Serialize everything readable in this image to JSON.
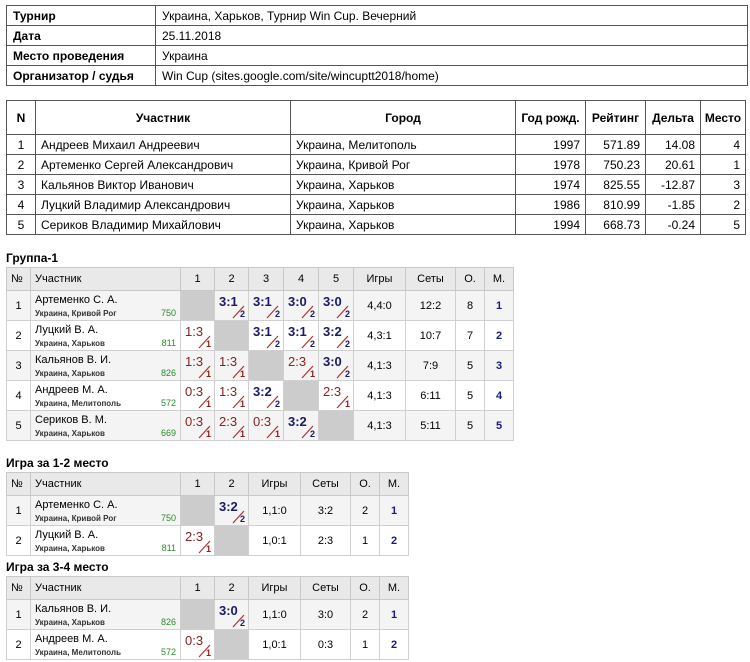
{
  "info": {
    "rows": [
      [
        "Турнир",
        "Украина, Харьков, Турнир Win Cup. Вечерний"
      ],
      [
        "Дата",
        "25.11.2018"
      ],
      [
        "Место проведения",
        "Украина"
      ],
      [
        "Организатор / судья",
        "Win Cup (sites.google.com/site/wincuptt2018/home)"
      ]
    ]
  },
  "participants": {
    "header": [
      "N",
      "Участник",
      "Город",
      "Год рожд.",
      "Рейтинг",
      "Дельта",
      "Место"
    ],
    "rows": [
      [
        "1",
        "Андреев Михаил Андреевич",
        "Украина, Мелитополь",
        "1997",
        "571.89",
        "14.08",
        "4"
      ],
      [
        "2",
        "Артеменко Сергей Александрович",
        "Украина, Кривой Рог",
        "1978",
        "750.23",
        "20.61",
        "1"
      ],
      [
        "3",
        "Кальянов Виктор Иванович",
        "Украина, Харьков",
        "1974",
        "825.55",
        "-12.87",
        "3"
      ],
      [
        "4",
        "Луцкий Владимир Александрович",
        "Украина, Харьков",
        "1986",
        "810.99",
        "-1.85",
        "2"
      ],
      [
        "5",
        "Сериков Владимир Михайлович",
        "Украина, Харьков",
        "1994",
        "668.73",
        "-0.24",
        "5"
      ]
    ]
  },
  "groups": [
    {
      "title": "Группа-1",
      "header": [
        "№",
        "Участник",
        "1",
        "2",
        "3",
        "4",
        "5",
        "Игры",
        "Сеты",
        "О.",
        "М."
      ],
      "rows": [
        {
          "num": "1",
          "name": "Артеменко С. А.",
          "city": "Украина, Кривой Рог",
          "rating": "750",
          "cells": [
            null,
            {
              "score": "3:1",
              "mark": "2"
            },
            {
              "score": "3:1",
              "mark": "2"
            },
            {
              "score": "3:0",
              "mark": "2"
            },
            {
              "score": "3:0",
              "mark": "2"
            }
          ],
          "games": "4,4:0",
          "sets": "12:2",
          "points": "8",
          "place": "1"
        },
        {
          "num": "2",
          "name": "Луцкий В. А.",
          "city": "Украина, Харьков",
          "rating": "811",
          "cells": [
            {
              "score": "1:3",
              "mark": "1"
            },
            null,
            {
              "score": "3:1",
              "mark": "2"
            },
            {
              "score": "3:1",
              "mark": "2"
            },
            {
              "score": "3:2",
              "mark": "2"
            }
          ],
          "games": "4,3:1",
          "sets": "10:7",
          "points": "7",
          "place": "2"
        },
        {
          "num": "3",
          "name": "Кальянов В. И.",
          "city": "Украина, Харьков",
          "rating": "826",
          "cells": [
            {
              "score": "1:3",
              "mark": "1"
            },
            {
              "score": "1:3",
              "mark": "1"
            },
            null,
            {
              "score": "2:3",
              "mark": "1"
            },
            {
              "score": "3:0",
              "mark": "2"
            }
          ],
          "games": "4,1:3",
          "sets": "7:9",
          "points": "5",
          "place": "3"
        },
        {
          "num": "4",
          "name": "Андреев М. А.",
          "city": "Украина, Мелитополь",
          "rating": "572",
          "cells": [
            {
              "score": "0:3",
              "mark": "1"
            },
            {
              "score": "1:3",
              "mark": "1"
            },
            {
              "score": "3:2",
              "mark": "2"
            },
            null,
            {
              "score": "2:3",
              "mark": "1"
            }
          ],
          "games": "4,1:3",
          "sets": "6:11",
          "points": "5",
          "place": "4"
        },
        {
          "num": "5",
          "name": "Сериков В. М.",
          "city": "Украина, Харьков",
          "rating": "669",
          "cells": [
            {
              "score": "0:3",
              "mark": "1"
            },
            {
              "score": "2:3",
              "mark": "1"
            },
            {
              "score": "0:3",
              "mark": "1"
            },
            {
              "score": "3:2",
              "mark": "2"
            },
            null
          ],
          "games": "4,1:3",
          "sets": "5:11",
          "points": "5",
          "place": "5"
        }
      ]
    },
    {
      "title": "Игра за 1-2 место",
      "header": [
        "№",
        "Участник",
        "1",
        "2",
        "Игры",
        "Сеты",
        "О.",
        "М."
      ],
      "rows": [
        {
          "num": "1",
          "name": "Артеменко С. А.",
          "city": "Украина, Кривой Рог",
          "rating": "750",
          "cells": [
            null,
            {
              "score": "3:2",
              "mark": "2"
            }
          ],
          "games": "1,1:0",
          "sets": "3:2",
          "points": "2",
          "place": "1"
        },
        {
          "num": "2",
          "name": "Луцкий В. А.",
          "city": "Украина, Харьков",
          "rating": "811",
          "cells": [
            {
              "score": "2:3",
              "mark": "1"
            },
            null
          ],
          "games": "1,0:1",
          "sets": "2:3",
          "points": "1",
          "place": "2"
        }
      ]
    },
    {
      "title": "Игра за 3-4 место",
      "header": [
        "№",
        "Участник",
        "1",
        "2",
        "Игры",
        "Сеты",
        "О.",
        "М."
      ],
      "rows": [
        {
          "num": "1",
          "name": "Кальянов В. И.",
          "city": "Украина, Харьков",
          "rating": "826",
          "cells": [
            null,
            {
              "score": "3:0",
              "mark": "2"
            }
          ],
          "games": "1,1:0",
          "sets": "3:0",
          "points": "2",
          "place": "1"
        },
        {
          "num": "2",
          "name": "Андреев М. А.",
          "city": "Украина, Мелитополь",
          "rating": "572",
          "cells": [
            {
              "score": "0:3",
              "mark": "1"
            },
            null
          ],
          "games": "1,0:1",
          "sets": "0:3",
          "points": "1",
          "place": "2"
        }
      ]
    }
  ]
}
